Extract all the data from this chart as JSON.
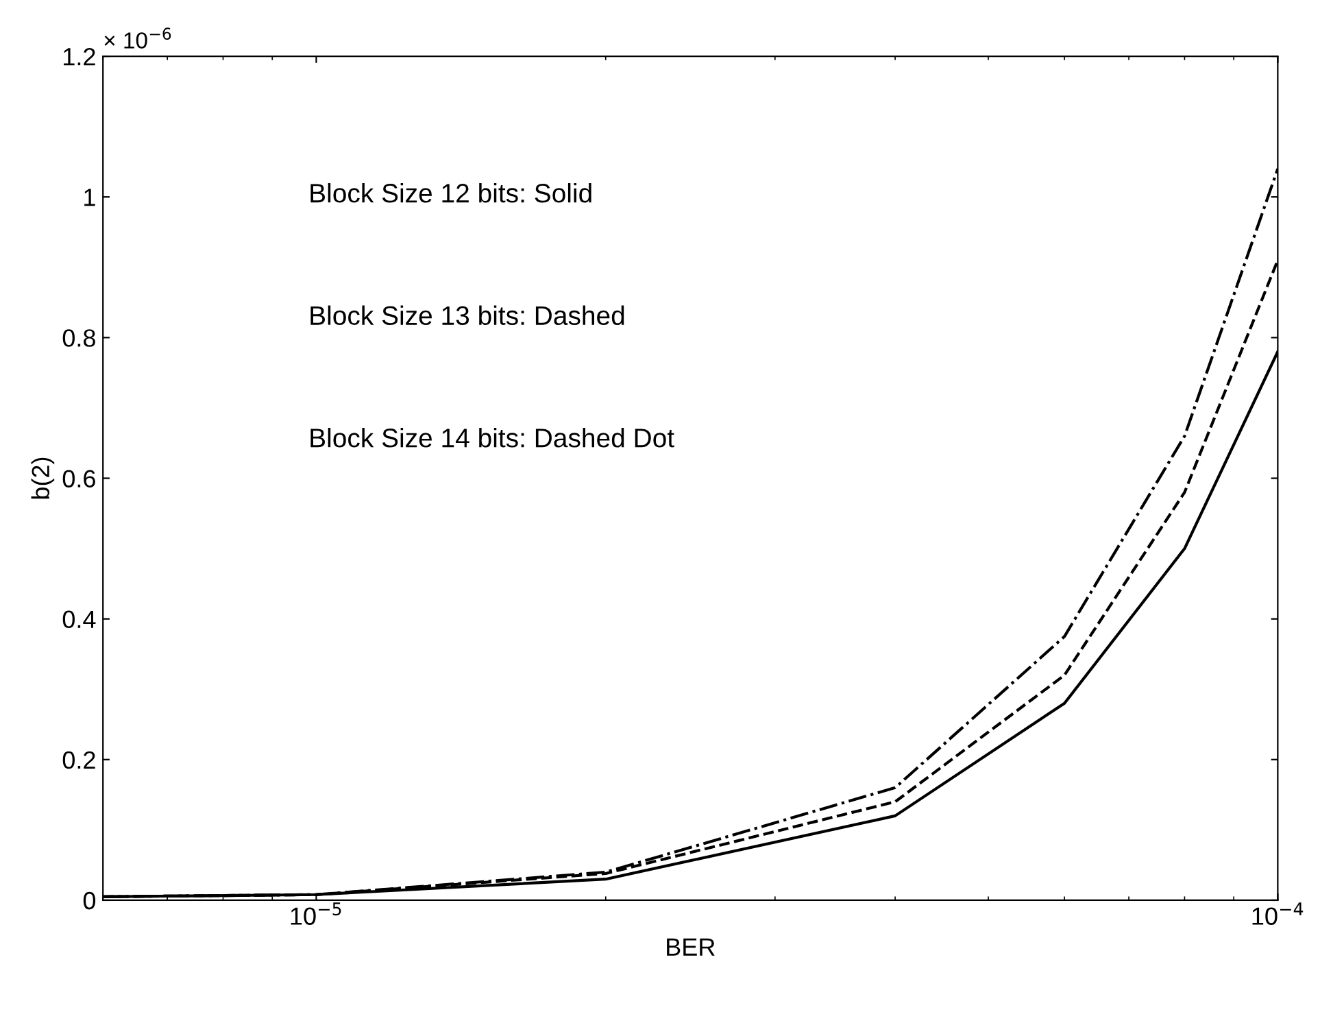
{
  "chart_data": {
    "type": "line",
    "xlabel": "BER",
    "ylabel": "b(2)",
    "log": "x",
    "x": [
      6e-06,
      1e-05,
      2e-05,
      4e-05,
      6e-05,
      8e-05,
      0.0001
    ],
    "series": [
      {
        "color": "#000000",
        "line_style": "solid",
        "values": [
          0.005,
          0.008,
          0.03,
          0.12,
          0.28,
          0.5,
          0.78
        ]
      },
      {
        "color": "#000000",
        "line_style": "dashed",
        "values": [
          0.005,
          0.008,
          0.038,
          0.14,
          0.32,
          0.58,
          0.91
        ]
      },
      {
        "color": "#000000",
        "line_style": "dashdot",
        "values": [
          0.005,
          0.008,
          0.04,
          0.16,
          0.375,
          0.66,
          1.04
        ]
      }
    ],
    "xlim": [
      6e-06,
      0.0001
    ],
    "xticks": [
      {
        "value": 1e-05,
        "label": "10$^{−5}$"
      },
      {
        "value": 0.0001,
        "label": "10$^{−4}$"
      }
    ],
    "ylim": [
      0,
      1.2
    ],
    "yticks": [
      0,
      0.2,
      0.4,
      0.6,
      0.8,
      1,
      1.2
    ],
    "annotations": [
      "× 10$^{−6}$",
      "Block Size 12 bits: Solid",
      "Block Size 13 bits: Dashed",
      "Block Size 14 bits: Dashed Dot"
    ],
    "grid": false,
    "legend": false,
    "marker": "none"
  }
}
